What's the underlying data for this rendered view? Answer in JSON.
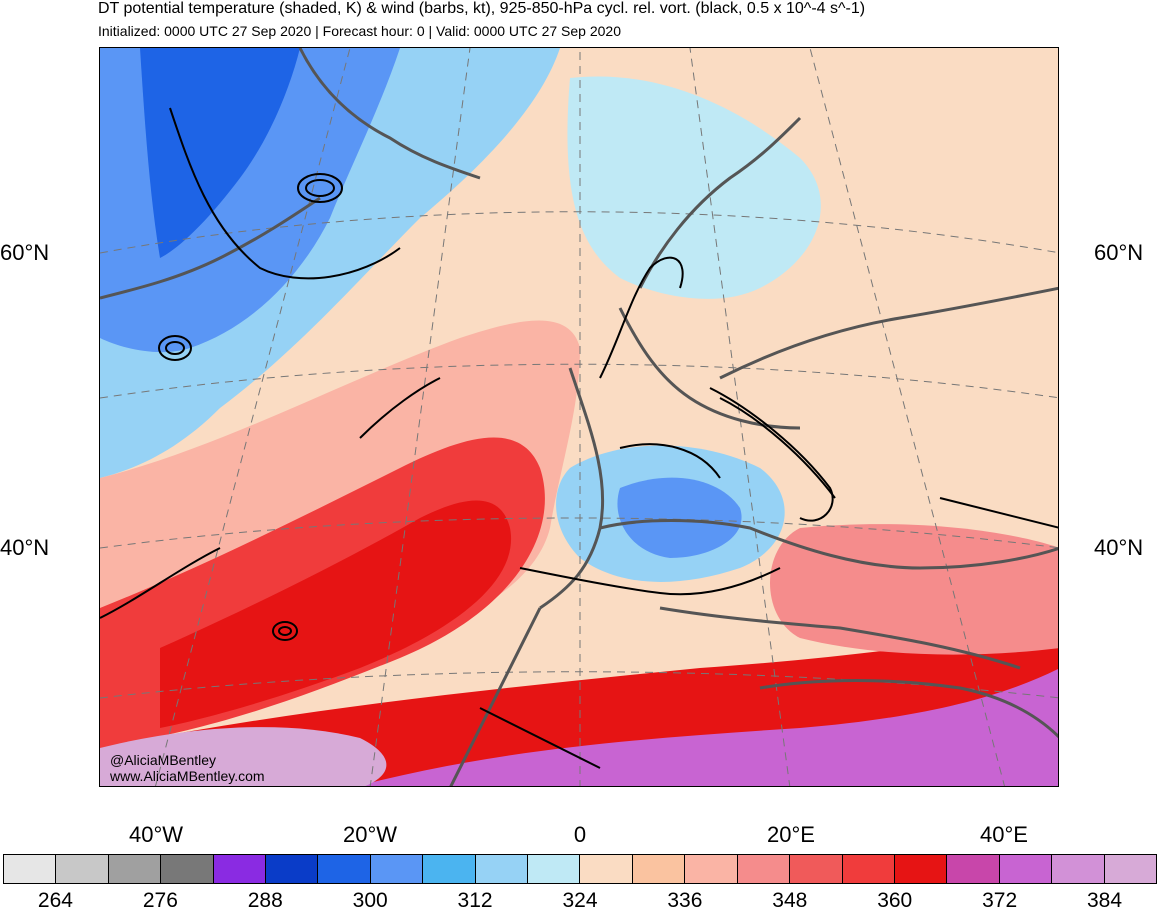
{
  "header": {
    "title": "DT potential temperature (shaded, K) & wind (barbs, kt), 925-850-hPa cycl. rel. vort. (black, 0.5 x 10^-4 s^-1)",
    "subtitle": "Initialized: 0000 UTC 27 Sep 2020 | Forecast hour: 0 | Valid: 0000 UTC 27 Sep 2020"
  },
  "credit": {
    "handle": "@AliciaMBentley",
    "website": "www.AliciaMBentley.com"
  },
  "axes": {
    "lat_labels": [
      "60°N",
      "40°N"
    ],
    "lon_labels": [
      "40°W",
      "20°W",
      "0",
      "20°E",
      "40°E"
    ]
  },
  "colorbar": {
    "colors": [
      "#e6e6e6",
      "#c8c8c8",
      "#a0a0a0",
      "#787878",
      "#8a2be2",
      "#0a3cc8",
      "#1e64e6",
      "#5a96f5",
      "#4bb4f0",
      "#96d2f5",
      "#bfe9f5",
      "#fadcc3",
      "#fac3a0",
      "#fab4a5",
      "#f58c8c",
      "#f05a5a",
      "#f03c3c",
      "#e61414",
      "#c846aa",
      "#c864d2",
      "#d291d7",
      "#d7aad7"
    ],
    "labels": [
      "264",
      "276",
      "288",
      "300",
      "312",
      "324",
      "336",
      "348",
      "360",
      "372",
      "384"
    ]
  },
  "map": {
    "ocean_color": "#bfe9f5",
    "warm_color": "#fadcc3",
    "hot_color": "#e61414",
    "purple_color": "#c864d2",
    "coast_color": "#555555",
    "contour_color": "#000000"
  }
}
